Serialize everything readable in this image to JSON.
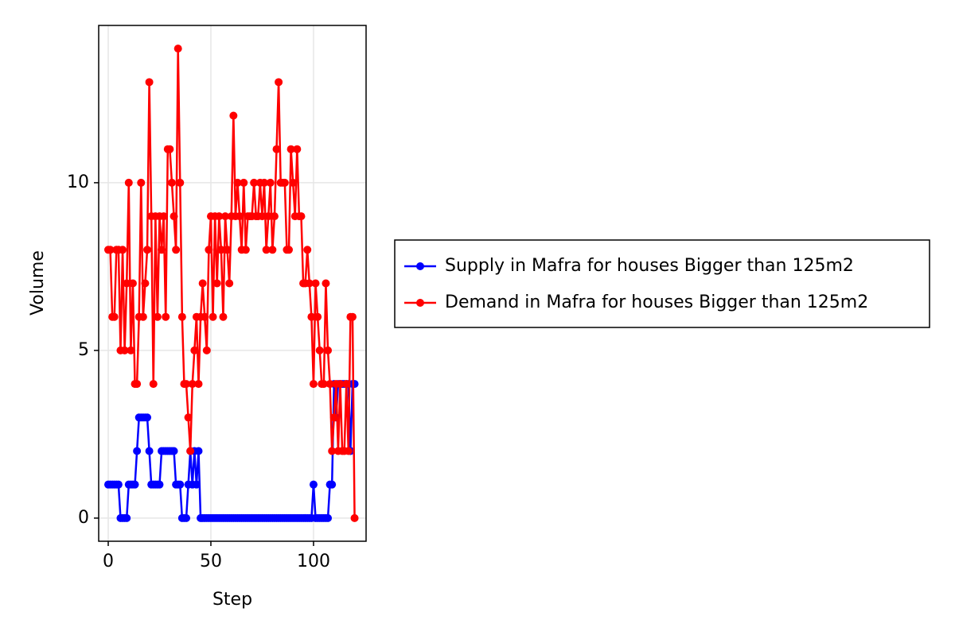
{
  "chart_data": {
    "type": "line",
    "x_label": "Step",
    "y_label": "Volume",
    "x": [
      0,
      1,
      2,
      3,
      4,
      5,
      6,
      7,
      8,
      9,
      10,
      11,
      12,
      13,
      14,
      15,
      16,
      17,
      18,
      19,
      20,
      21,
      22,
      23,
      24,
      25,
      26,
      27,
      28,
      29,
      30,
      31,
      32,
      33,
      34,
      35,
      36,
      37,
      38,
      39,
      40,
      41,
      42,
      43,
      44,
      45,
      46,
      47,
      48,
      49,
      50,
      51,
      52,
      53,
      54,
      55,
      56,
      57,
      58,
      59,
      60,
      61,
      62,
      63,
      64,
      65,
      66,
      67,
      68,
      69,
      70,
      71,
      72,
      73,
      74,
      75,
      76,
      77,
      78,
      79,
      80,
      81,
      82,
      83,
      84,
      85,
      86,
      87,
      88,
      89,
      90,
      91,
      92,
      93,
      94,
      95,
      96,
      97,
      98,
      99,
      100,
      101,
      102,
      103,
      104,
      105,
      106,
      107,
      108,
      109,
      110,
      111,
      112,
      113,
      114,
      115,
      116,
      117,
      118,
      119,
      120
    ],
    "series": [
      {
        "name": "Supply in Mafra for houses Bigger than 125m2",
        "color": "#0000ff",
        "values": [
          1,
          1,
          1,
          1,
          1,
          1,
          0,
          0,
          0,
          0,
          1,
          1,
          1,
          1,
          2,
          3,
          3,
          3,
          3,
          3,
          2,
          1,
          1,
          1,
          1,
          1,
          2,
          2,
          2,
          2,
          2,
          2,
          2,
          1,
          1,
          1,
          0,
          0,
          0,
          1,
          2,
          1,
          2,
          1,
          2,
          0,
          0,
          0,
          0,
          0,
          0,
          0,
          0,
          0,
          0,
          0,
          0,
          0,
          0,
          0,
          0,
          0,
          0,
          0,
          0,
          0,
          0,
          0,
          0,
          0,
          0,
          0,
          0,
          0,
          0,
          0,
          0,
          0,
          0,
          0,
          0,
          0,
          0,
          0,
          0,
          0,
          0,
          0,
          0,
          0,
          0,
          0,
          0,
          0,
          0,
          0,
          0,
          0,
          0,
          0,
          1,
          0,
          0,
          0,
          0,
          0,
          0,
          0,
          1,
          1,
          4,
          3,
          4,
          4,
          4,
          4,
          4,
          4,
          2,
          4,
          4
        ]
      },
      {
        "name": "Demand in Mafra for houses Bigger than 125m2",
        "color": "#ff0000",
        "values": [
          8,
          8,
          6,
          6,
          8,
          8,
          5,
          8,
          5,
          7,
          10,
          5,
          7,
          4,
          4,
          6,
          10,
          6,
          7,
          8,
          13,
          9,
          4,
          9,
          6,
          9,
          8,
          9,
          6,
          11,
          11,
          10,
          9,
          8,
          14,
          10,
          6,
          4,
          4,
          3,
          2,
          4,
          5,
          6,
          4,
          6,
          7,
          6,
          5,
          8,
          9,
          6,
          9,
          7,
          9,
          8,
          6,
          9,
          8,
          7,
          9,
          12,
          9,
          10,
          9,
          8,
          10,
          8,
          9,
          9,
          9,
          10,
          9,
          9,
          10,
          9,
          10,
          8,
          9,
          10,
          8,
          9,
          11,
          13,
          10,
          10,
          10,
          8,
          8,
          11,
          10,
          9,
          11,
          9,
          9,
          7,
          7,
          8,
          7,
          6,
          4,
          7,
          6,
          5,
          4,
          4,
          7,
          5,
          4,
          2,
          3,
          4,
          2,
          4,
          2,
          2,
          4,
          2,
          6,
          6,
          0
        ]
      }
    ],
    "xlim": [
      -4.65,
      125.6
    ],
    "ylim": [
      -0.69,
      14.69
    ],
    "xticks": [
      0,
      50,
      100
    ],
    "yticks": [
      0,
      5,
      10
    ],
    "grid": true
  }
}
